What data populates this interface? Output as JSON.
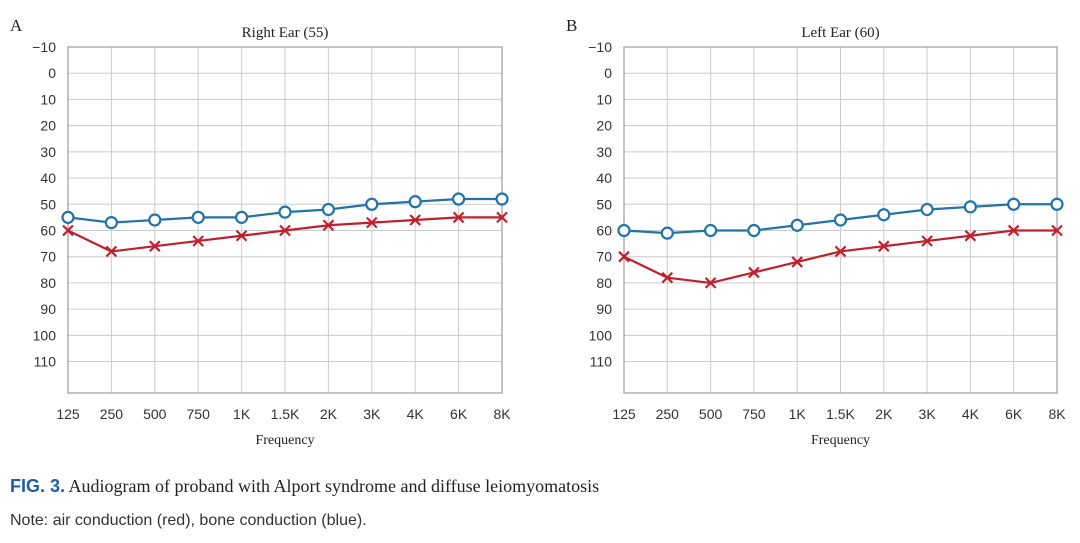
{
  "caption": {
    "label": "FIG. 3.",
    "text": "Audiogram of proband with Alport syndrome and diffuse leiomyomatosis"
  },
  "note": "Note: air conduction (red), bone conduction (blue).",
  "colors": {
    "air": "#c0202e",
    "bone": "#2274a8",
    "grid": "#cccccc",
    "frame": "#888888"
  },
  "chart_data": [
    {
      "type": "line",
      "panel": "A",
      "title": "Right Ear (55)",
      "xlabel": "Frequency",
      "ylabel": "",
      "categories": [
        "125",
        "250",
        "500",
        "750",
        "1K",
        "1.5K",
        "2K",
        "3K",
        "4K",
        "6K",
        "8K"
      ],
      "yticks": [
        -10,
        0,
        10,
        20,
        30,
        40,
        50,
        60,
        70,
        80,
        90,
        100,
        110
      ],
      "ylim": [
        -10,
        122
      ],
      "y_inverted": true,
      "grid": true,
      "series": [
        {
          "key": "bone",
          "marker": "circle",
          "values": [
            55,
            57,
            56,
            55,
            55,
            53,
            52,
            50,
            49,
            48,
            48
          ]
        },
        {
          "key": "air",
          "marker": "x",
          "values": [
            60,
            68,
            66,
            64,
            62,
            60,
            58,
            57,
            56,
            55,
            55
          ]
        }
      ]
    },
    {
      "type": "line",
      "panel": "B",
      "title": "Left Ear (60)",
      "xlabel": "Frequency",
      "ylabel": "",
      "categories": [
        "125",
        "250",
        "500",
        "750",
        "1K",
        "1.5K",
        "2K",
        "3K",
        "4K",
        "6K",
        "8K"
      ],
      "yticks": [
        -10,
        0,
        10,
        20,
        30,
        40,
        50,
        60,
        70,
        80,
        90,
        100,
        110
      ],
      "ylim": [
        -10,
        122
      ],
      "y_inverted": true,
      "grid": true,
      "series": [
        {
          "key": "bone",
          "marker": "circle",
          "values": [
            60,
            61,
            60,
            60,
            58,
            56,
            54,
            52,
            51,
            50,
            50
          ]
        },
        {
          "key": "air",
          "marker": "x",
          "values": [
            70,
            78,
            80,
            76,
            72,
            68,
            66,
            64,
            62,
            60,
            60
          ]
        }
      ]
    }
  ]
}
